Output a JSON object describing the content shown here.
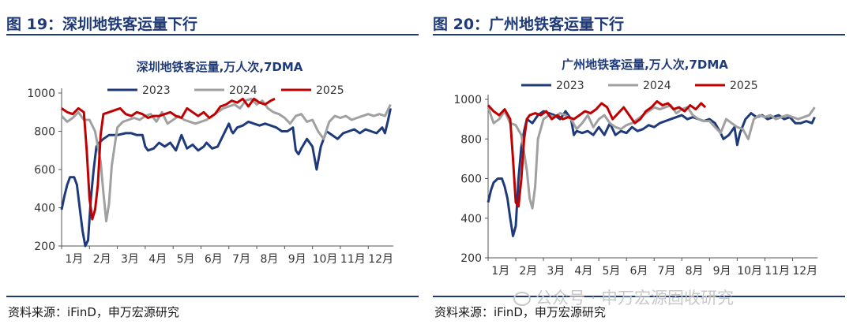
{
  "panels": [
    {
      "heading": "图 19：深圳地铁客运量下行",
      "source": "资料来源：iFinD，申万宏源研究"
    },
    {
      "heading": "图 20：广州地铁客运量下行",
      "source": "资料来源：iFinD，申万宏源研究"
    }
  ],
  "watermark": "公众号 · 申万宏源固收研究",
  "colors": {
    "s2023": "#1f3a7a",
    "s2024": "#a0a0a0",
    "s2025": "#c00000",
    "heading": "#1e3a78"
  },
  "chart_data": [
    {
      "type": "line",
      "title": "深圳地铁客运量,万人次,7DMA",
      "xlabel": "",
      "ylabel": "",
      "categories": [
        "1月",
        "2月",
        "3月",
        "4月",
        "5月",
        "6月",
        "7月",
        "8月",
        "9月",
        "10月",
        "11月",
        "12月"
      ],
      "ylim": [
        200,
        1000
      ],
      "yticks": [
        200,
        400,
        600,
        800,
        1000
      ],
      "legend": "top",
      "grid": false,
      "series": [
        {
          "name": "2023",
          "key": "s2023",
          "x": [
            1.0,
            1.1,
            1.2,
            1.3,
            1.45,
            1.55,
            1.65,
            1.75,
            1.85,
            1.95,
            2.05,
            2.15,
            2.25,
            2.35,
            2.5,
            2.7,
            3.0,
            3.3,
            3.5,
            3.7,
            3.9,
            4.0,
            4.1,
            4.3,
            4.5,
            4.6,
            4.7,
            4.9,
            5.1,
            5.15,
            5.3,
            5.5,
            5.7,
            5.9,
            6.1,
            6.2,
            6.4,
            6.6,
            6.8,
            7.0,
            7.1,
            7.15,
            7.3,
            7.5,
            7.7,
            7.9,
            8.1,
            8.3,
            8.5,
            8.7,
            8.9,
            9.1,
            9.3,
            9.4,
            9.5,
            9.6,
            9.8,
            10.0,
            10.15,
            10.3,
            10.5,
            10.7,
            10.9,
            11.1,
            11.3,
            11.5,
            11.7,
            11.9,
            12.1,
            12.3,
            12.5,
            12.6,
            12.7,
            12.8
          ],
          "y": [
            390,
            460,
            520,
            560,
            560,
            520,
            400,
            280,
            200,
            230,
            450,
            600,
            720,
            740,
            760,
            780,
            780,
            790,
            790,
            780,
            780,
            720,
            700,
            710,
            740,
            730,
            720,
            740,
            700,
            720,
            780,
            710,
            730,
            700,
            720,
            740,
            710,
            720,
            780,
            840,
            800,
            790,
            820,
            830,
            850,
            840,
            830,
            840,
            830,
            820,
            800,
            800,
            820,
            700,
            680,
            710,
            760,
            720,
            600,
            720,
            800,
            780,
            760,
            790,
            800,
            810,
            790,
            810,
            800,
            790,
            820,
            790,
            850,
            920
          ]
        },
        {
          "name": "2024",
          "key": "s2024",
          "x": [
            1.0,
            1.2,
            1.4,
            1.6,
            1.8,
            2.0,
            2.2,
            2.4,
            2.5,
            2.6,
            2.7,
            2.8,
            3.0,
            3.2,
            3.4,
            3.6,
            3.8,
            4.0,
            4.2,
            4.4,
            4.6,
            4.8,
            5.0,
            5.2,
            5.4,
            5.6,
            5.8,
            6.0,
            6.2,
            6.4,
            6.6,
            6.8,
            7.0,
            7.2,
            7.4,
            7.6,
            7.8,
            8.0,
            8.2,
            8.4,
            8.6,
            8.8,
            9.0,
            9.2,
            9.4,
            9.6,
            9.8,
            10.0,
            10.2,
            10.4,
            10.6,
            10.8,
            11.0,
            11.2,
            11.4,
            11.6,
            11.8,
            12.0,
            12.2,
            12.4,
            12.6,
            12.8
          ],
          "y": [
            880,
            850,
            870,
            900,
            860,
            860,
            800,
            640,
            480,
            330,
            420,
            620,
            820,
            850,
            860,
            870,
            860,
            880,
            890,
            850,
            900,
            840,
            860,
            880,
            860,
            850,
            840,
            850,
            860,
            880,
            900,
            920,
            930,
            940,
            920,
            960,
            970,
            940,
            960,
            920,
            900,
            890,
            870,
            840,
            880,
            890,
            850,
            860,
            800,
            760,
            850,
            880,
            870,
            880,
            860,
            870,
            880,
            890,
            880,
            890,
            880,
            940
          ]
        },
        {
          "name": "2025",
          "key": "s2025",
          "x": [
            1.0,
            1.2,
            1.4,
            1.6,
            1.8,
            1.9,
            2.0,
            2.1,
            2.2,
            2.3,
            2.4,
            2.5,
            2.7,
            2.9,
            3.1,
            3.3,
            3.5,
            3.7,
            3.9,
            4.1,
            4.3,
            4.5,
            4.7,
            4.9,
            5.1,
            5.3,
            5.5,
            5.7,
            5.9,
            6.1,
            6.3,
            6.5,
            6.7,
            6.9,
            7.1,
            7.3,
            7.5,
            7.7,
            7.9,
            8.1,
            8.3,
            8.5,
            8.65
          ],
          "y": [
            920,
            900,
            890,
            920,
            900,
            700,
            450,
            340,
            390,
            520,
            780,
            890,
            900,
            910,
            920,
            890,
            880,
            900,
            890,
            870,
            880,
            880,
            890,
            900,
            880,
            870,
            920,
            900,
            880,
            900,
            870,
            890,
            930,
            940,
            960,
            950,
            970,
            930,
            970,
            950,
            940,
            960,
            970
          ]
        }
      ]
    },
    {
      "type": "line",
      "title": "广州地铁客运量,万人次,7DMA",
      "xlabel": "",
      "ylabel": "",
      "categories": [
        "1月",
        "2月",
        "3月",
        "4月",
        "5月",
        "6月",
        "7月",
        "8月",
        "9月",
        "10月",
        "11月",
        "12月"
      ],
      "ylim": [
        200,
        1000
      ],
      "yticks": [
        200,
        400,
        600,
        800,
        1000
      ],
      "legend": "top",
      "grid": false,
      "series": [
        {
          "name": "2023",
          "key": "s2023",
          "x": [
            1.0,
            1.1,
            1.2,
            1.35,
            1.5,
            1.6,
            1.7,
            1.8,
            1.9,
            2.0,
            2.1,
            2.2,
            2.3,
            2.4,
            2.6,
            2.8,
            3.0,
            3.2,
            3.4,
            3.6,
            3.8,
            4.0,
            4.1,
            4.2,
            4.4,
            4.6,
            4.8,
            5.0,
            5.2,
            5.4,
            5.6,
            5.8,
            6.0,
            6.2,
            6.4,
            6.6,
            6.8,
            7.0,
            7.2,
            7.4,
            7.6,
            7.8,
            8.0,
            8.2,
            8.4,
            8.6,
            8.8,
            9.0,
            9.2,
            9.4,
            9.5,
            9.7,
            9.9,
            10.0,
            10.1,
            10.3,
            10.5,
            10.7,
            10.9,
            11.1,
            11.3,
            11.5,
            11.7,
            11.9,
            12.1,
            12.3,
            12.5,
            12.7,
            12.8
          ],
          "y": [
            480,
            540,
            580,
            600,
            600,
            560,
            500,
            400,
            310,
            360,
            600,
            760,
            840,
            900,
            880,
            920,
            940,
            930,
            920,
            900,
            940,
            900,
            820,
            840,
            830,
            840,
            820,
            860,
            820,
            880,
            820,
            840,
            830,
            860,
            840,
            850,
            870,
            860,
            880,
            890,
            900,
            910,
            920,
            900,
            910,
            900,
            890,
            900,
            880,
            830,
            800,
            820,
            860,
            770,
            830,
            900,
            930,
            910,
            920,
            900,
            910,
            920,
            900,
            910,
            880,
            880,
            890,
            880,
            910
          ]
        },
        {
          "name": "2024",
          "key": "s2024",
          "x": [
            1.0,
            1.2,
            1.4,
            1.6,
            1.8,
            2.0,
            2.2,
            2.4,
            2.5,
            2.6,
            2.7,
            2.8,
            3.0,
            3.2,
            3.4,
            3.6,
            3.8,
            4.0,
            4.2,
            4.4,
            4.6,
            4.8,
            5.0,
            5.2,
            5.4,
            5.6,
            5.8,
            6.0,
            6.2,
            6.4,
            6.6,
            6.8,
            7.0,
            7.2,
            7.4,
            7.6,
            7.8,
            8.0,
            8.2,
            8.4,
            8.6,
            8.8,
            9.0,
            9.2,
            9.4,
            9.6,
            9.8,
            10.0,
            10.2,
            10.4,
            10.6,
            10.8,
            11.0,
            11.2,
            11.4,
            11.6,
            11.8,
            12.0,
            12.2,
            12.4,
            12.6,
            12.8
          ],
          "y": [
            960,
            880,
            900,
            940,
            880,
            870,
            820,
            640,
            500,
            450,
            560,
            800,
            900,
            920,
            910,
            930,
            920,
            900,
            850,
            880,
            920,
            860,
            900,
            920,
            880,
            860,
            850,
            870,
            880,
            900,
            920,
            940,
            960,
            950,
            960,
            970,
            930,
            950,
            960,
            920,
            900,
            890,
            890,
            860,
            830,
            900,
            880,
            860,
            850,
            800,
            900,
            920,
            910,
            920,
            900,
            910,
            920,
            910,
            900,
            910,
            920,
            960
          ]
        },
        {
          "name": "2025",
          "key": "s2025",
          "x": [
            1.0,
            1.2,
            1.4,
            1.6,
            1.8,
            1.9,
            2.0,
            2.1,
            2.2,
            2.3,
            2.4,
            2.5,
            2.7,
            2.9,
            3.1,
            3.3,
            3.5,
            3.7,
            3.9,
            4.1,
            4.3,
            4.5,
            4.7,
            4.9,
            5.1,
            5.3,
            5.5,
            5.7,
            5.9,
            6.1,
            6.3,
            6.5,
            6.7,
            6.9,
            7.1,
            7.3,
            7.5,
            7.7,
            7.9,
            8.1,
            8.3,
            8.5,
            8.7,
            8.85
          ],
          "y": [
            970,
            940,
            920,
            950,
            900,
            700,
            480,
            460,
            600,
            800,
            900,
            920,
            930,
            920,
            940,
            900,
            920,
            900,
            910,
            900,
            920,
            940,
            930,
            950,
            980,
            960,
            900,
            930,
            960,
            920,
            880,
            900,
            940,
            960,
            990,
            970,
            980,
            950,
            960,
            940,
            970,
            950,
            980,
            960
          ]
        }
      ]
    }
  ]
}
